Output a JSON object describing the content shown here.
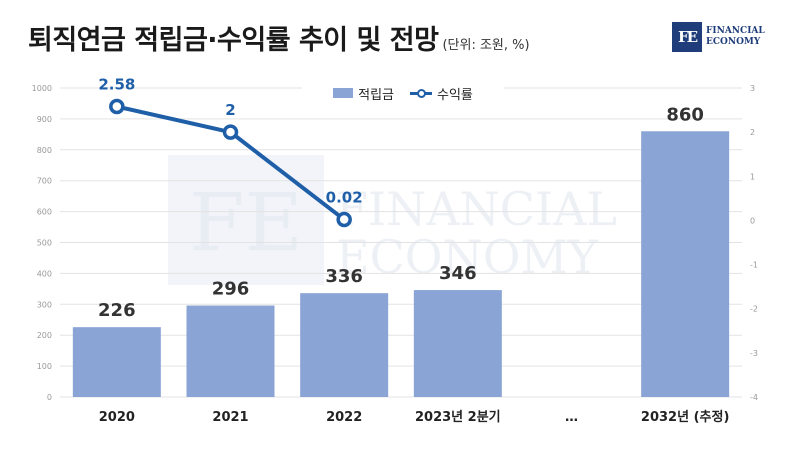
{
  "title": "퇴직연금 적립금·수익률 추이 및 전망",
  "unit": "(단위: 조원, %)",
  "brand": {
    "mark": "FE",
    "line1": "FINANCIAL",
    "line2": "ECONOMY"
  },
  "watermark": {
    "mark": "FE",
    "line1": "FINANCIAL",
    "line2": "ECONOMY"
  },
  "colors": {
    "bar": "#8aa4d6",
    "line": "#1f5fa8",
    "grid": "#e3e3e3"
  },
  "legend": {
    "position": "top-center",
    "bar_label": "적립금",
    "line_label": "수익률"
  },
  "chart_data": {
    "type": "bar",
    "categories": [
      "2020",
      "2021",
      "2022",
      "2023년 2분기",
      "…",
      "2032년 (추정)"
    ],
    "series": [
      {
        "name": "적립금",
        "type": "bar",
        "axis": "left",
        "values": [
          226,
          296,
          336,
          346,
          null,
          860
        ]
      },
      {
        "name": "수익률",
        "type": "line",
        "axis": "right",
        "values": [
          2.58,
          2,
          0.02,
          null,
          null,
          null
        ]
      }
    ],
    "bar_labels": [
      "226",
      "296",
      "336",
      "346",
      "",
      "860"
    ],
    "line_labels": [
      "2.58",
      "2",
      "0.02",
      "",
      "",
      ""
    ],
    "y_left": {
      "min": 0,
      "max": 1000,
      "ticks": [
        "0",
        "100",
        "200",
        "300",
        "400",
        "500",
        "600",
        "700",
        "800",
        "900",
        "1000"
      ]
    },
    "y_right": {
      "min": -4,
      "max": 3,
      "ticks": [
        "-4",
        "-3",
        "-2",
        "-1",
        "0",
        "1",
        "2",
        "3"
      ]
    },
    "grid": true
  }
}
